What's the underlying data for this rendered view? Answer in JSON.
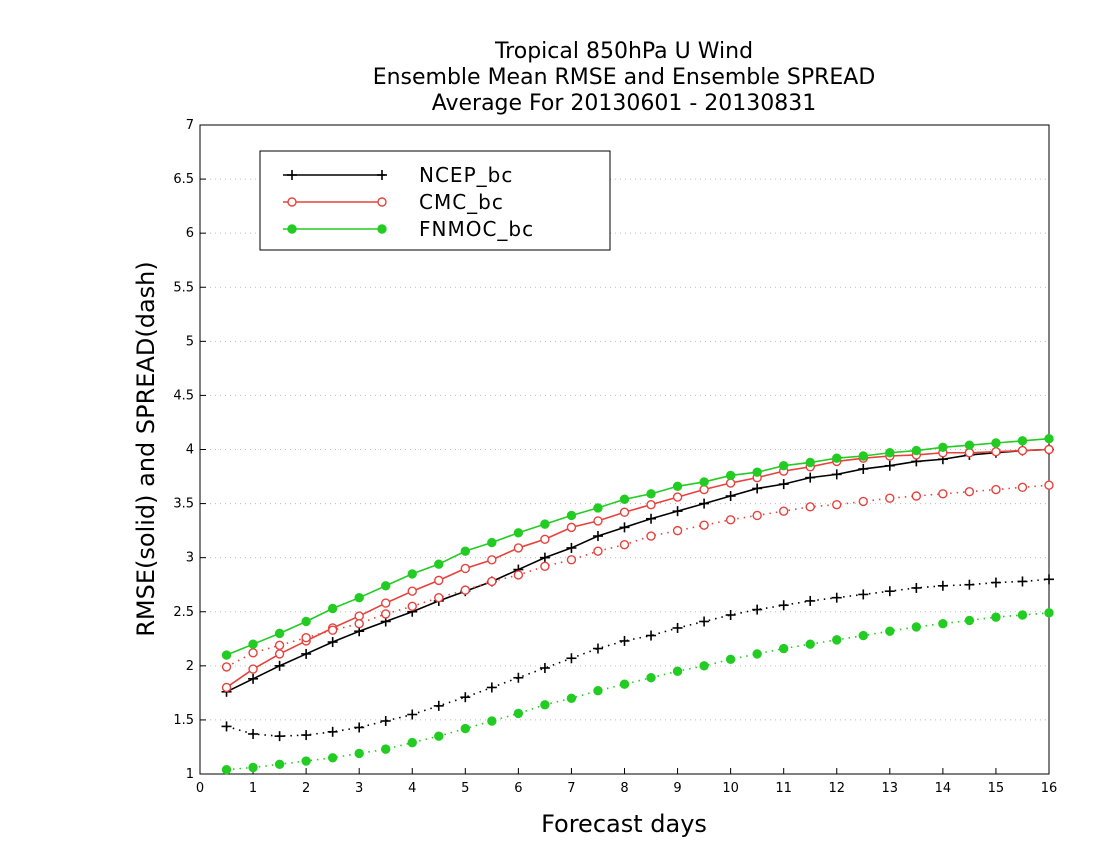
{
  "chart_data": {
    "type": "line",
    "title": [
      "Tropical 850hPa U Wind",
      "Ensemble Mean RMSE and Ensemble SPREAD",
      "Average For 20130601 - 20130831"
    ],
    "xlabel": "Forecast days",
    "ylabel": "RMSE(solid) and SPREAD(dash)",
    "xlim": [
      0,
      16
    ],
    "ylim": [
      1,
      7
    ],
    "x_ticks": [
      "0",
      "1",
      "2",
      "3",
      "4",
      "5",
      "6",
      "7",
      "8",
      "9",
      "10",
      "11",
      "12",
      "13",
      "14",
      "15",
      "16"
    ],
    "y_ticks": [
      "1",
      "1.5",
      "2",
      "2.5",
      "3",
      "3.5",
      "4",
      "4.5",
      "5",
      "5.5",
      "6",
      "6.5",
      "7"
    ],
    "grid": "horizontal dotted",
    "legend_position": "top-left",
    "x": [
      0.5,
      1,
      1.5,
      2,
      2.5,
      3,
      3.5,
      4,
      4.5,
      5,
      5.5,
      6,
      6.5,
      7,
      7.5,
      8,
      8.5,
      9,
      9.5,
      10,
      10.5,
      11,
      11.5,
      12,
      12.5,
      13,
      13.5,
      14,
      14.5,
      15,
      15.5,
      16
    ],
    "series": [
      {
        "name": "NCEP_bc",
        "color": "#000000",
        "marker": "plus",
        "rmse": [
          1.76,
          1.88,
          2.0,
          2.11,
          2.22,
          2.32,
          2.41,
          2.5,
          2.6,
          2.69,
          2.78,
          2.89,
          3.0,
          3.09,
          3.2,
          3.28,
          3.36,
          3.43,
          3.5,
          3.57,
          3.64,
          3.68,
          3.74,
          3.77,
          3.82,
          3.85,
          3.89,
          3.91,
          3.95,
          3.97,
          3.99,
          4.0
        ],
        "spread": [
          1.44,
          1.37,
          1.35,
          1.36,
          1.39,
          1.43,
          1.49,
          1.55,
          1.63,
          1.71,
          1.8,
          1.89,
          1.98,
          2.07,
          2.16,
          2.23,
          2.28,
          2.35,
          2.41,
          2.47,
          2.52,
          2.56,
          2.6,
          2.63,
          2.66,
          2.69,
          2.72,
          2.74,
          2.75,
          2.77,
          2.78,
          2.8
        ]
      },
      {
        "name": "CMC_bc",
        "color": "#e8413c",
        "marker": "open-circle",
        "rmse": [
          1.8,
          1.97,
          2.11,
          2.23,
          2.35,
          2.46,
          2.58,
          2.69,
          2.79,
          2.9,
          2.98,
          3.09,
          3.17,
          3.28,
          3.34,
          3.42,
          3.49,
          3.56,
          3.63,
          3.69,
          3.74,
          3.8,
          3.84,
          3.89,
          3.92,
          3.94,
          3.95,
          3.97,
          3.97,
          3.98,
          3.99,
          4.0
        ],
        "spread": [
          1.99,
          2.12,
          2.19,
          2.26,
          2.33,
          2.39,
          2.48,
          2.55,
          2.63,
          2.7,
          2.78,
          2.84,
          2.92,
          2.98,
          3.06,
          3.12,
          3.2,
          3.25,
          3.3,
          3.35,
          3.39,
          3.43,
          3.47,
          3.49,
          3.52,
          3.55,
          3.57,
          3.59,
          3.61,
          3.63,
          3.65,
          3.67
        ]
      },
      {
        "name": "FNMOC_bc",
        "color": "#22cc22",
        "marker": "filled-circle",
        "rmse": [
          2.1,
          2.2,
          2.3,
          2.41,
          2.53,
          2.63,
          2.74,
          2.85,
          2.94,
          3.06,
          3.14,
          3.23,
          3.31,
          3.39,
          3.46,
          3.54,
          3.59,
          3.66,
          3.7,
          3.76,
          3.79,
          3.85,
          3.88,
          3.92,
          3.94,
          3.97,
          3.99,
          4.02,
          4.04,
          4.06,
          4.08,
          4.1
        ],
        "spread": [
          1.04,
          1.06,
          1.09,
          1.12,
          1.15,
          1.19,
          1.23,
          1.29,
          1.35,
          1.42,
          1.49,
          1.56,
          1.64,
          1.7,
          1.77,
          1.83,
          1.89,
          1.95,
          2.0,
          2.06,
          2.11,
          2.16,
          2.2,
          2.24,
          2.28,
          2.32,
          2.36,
          2.39,
          2.42,
          2.45,
          2.47,
          2.49
        ]
      }
    ]
  }
}
